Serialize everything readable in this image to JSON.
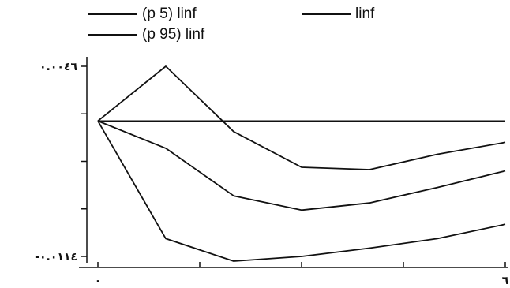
{
  "chart_data": {
    "type": "line",
    "x": [
      0,
      1,
      2,
      3,
      4,
      5,
      6
    ],
    "series": [
      {
        "name": "linf",
        "values": [
          0,
          -0.0023,
          -0.0063,
          -0.0075,
          -0.0069,
          -0.0056,
          -0.0042
        ]
      },
      {
        "name": "(p 5) linf",
        "values": [
          0,
          -0.0099,
          -0.0118,
          -0.0114,
          -0.0107,
          -0.0099,
          -0.0087
        ]
      },
      {
        "name": "(p 95) linf",
        "values": [
          0,
          0.0046,
          -0.0009,
          -0.0039,
          -0.0041,
          -0.0028,
          -0.0018
        ]
      }
    ],
    "reference_line": 0,
    "xlim": [
      0,
      6
    ],
    "ylim": [
      -0.0114,
      0.0046
    ],
    "x_tick_values": [
      0,
      1.5,
      3,
      4.5,
      6
    ],
    "x_tick_labels": [
      {
        "value": 0,
        "label": "٠"
      },
      {
        "value": 6,
        "label": "٦"
      }
    ],
    "y_tick_values": [
      -0.0114,
      -0.0074,
      -0.0034,
      0.0006,
      0.0046
    ],
    "y_tick_labels": [
      {
        "value": 0.0046,
        "label": "٠.٠٠٤٦"
      },
      {
        "value": -0.0114,
        "label": "-٠.٠١١٤"
      }
    ],
    "legend": {
      "placement": "top",
      "entries": [
        "(p 5) linf",
        "linf",
        "(p 95) linf"
      ]
    },
    "grid": false,
    "line_color": "#111111"
  }
}
